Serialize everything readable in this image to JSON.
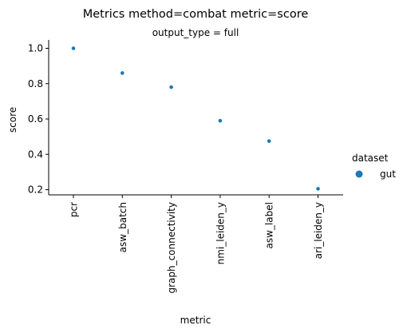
{
  "chart_data": {
    "type": "scatter",
    "title": "Metrics method=combat metric=score",
    "subtitle": "output_type = full",
    "xlabel": "metric",
    "ylabel": "score",
    "categories": [
      "pcr",
      "asw_batch",
      "graph_connectivity",
      "nmi_leiden_y",
      "asw_label",
      "ari_leiden_y"
    ],
    "series": [
      {
        "name": "gut",
        "values": [
          1.0,
          0.86,
          0.78,
          0.59,
          0.475,
          0.205
        ],
        "color": "#1f77b4"
      }
    ],
    "ylim": [
      0.16,
      1.04
    ],
    "yticks": [
      0.2,
      0.4,
      0.6,
      0.8,
      1.0
    ],
    "ytick_labels": [
      "0.2",
      "0.4",
      "0.6",
      "0.8",
      "1.0"
    ],
    "grid": false,
    "legend": {
      "title": "dataset",
      "placement": "right"
    }
  }
}
